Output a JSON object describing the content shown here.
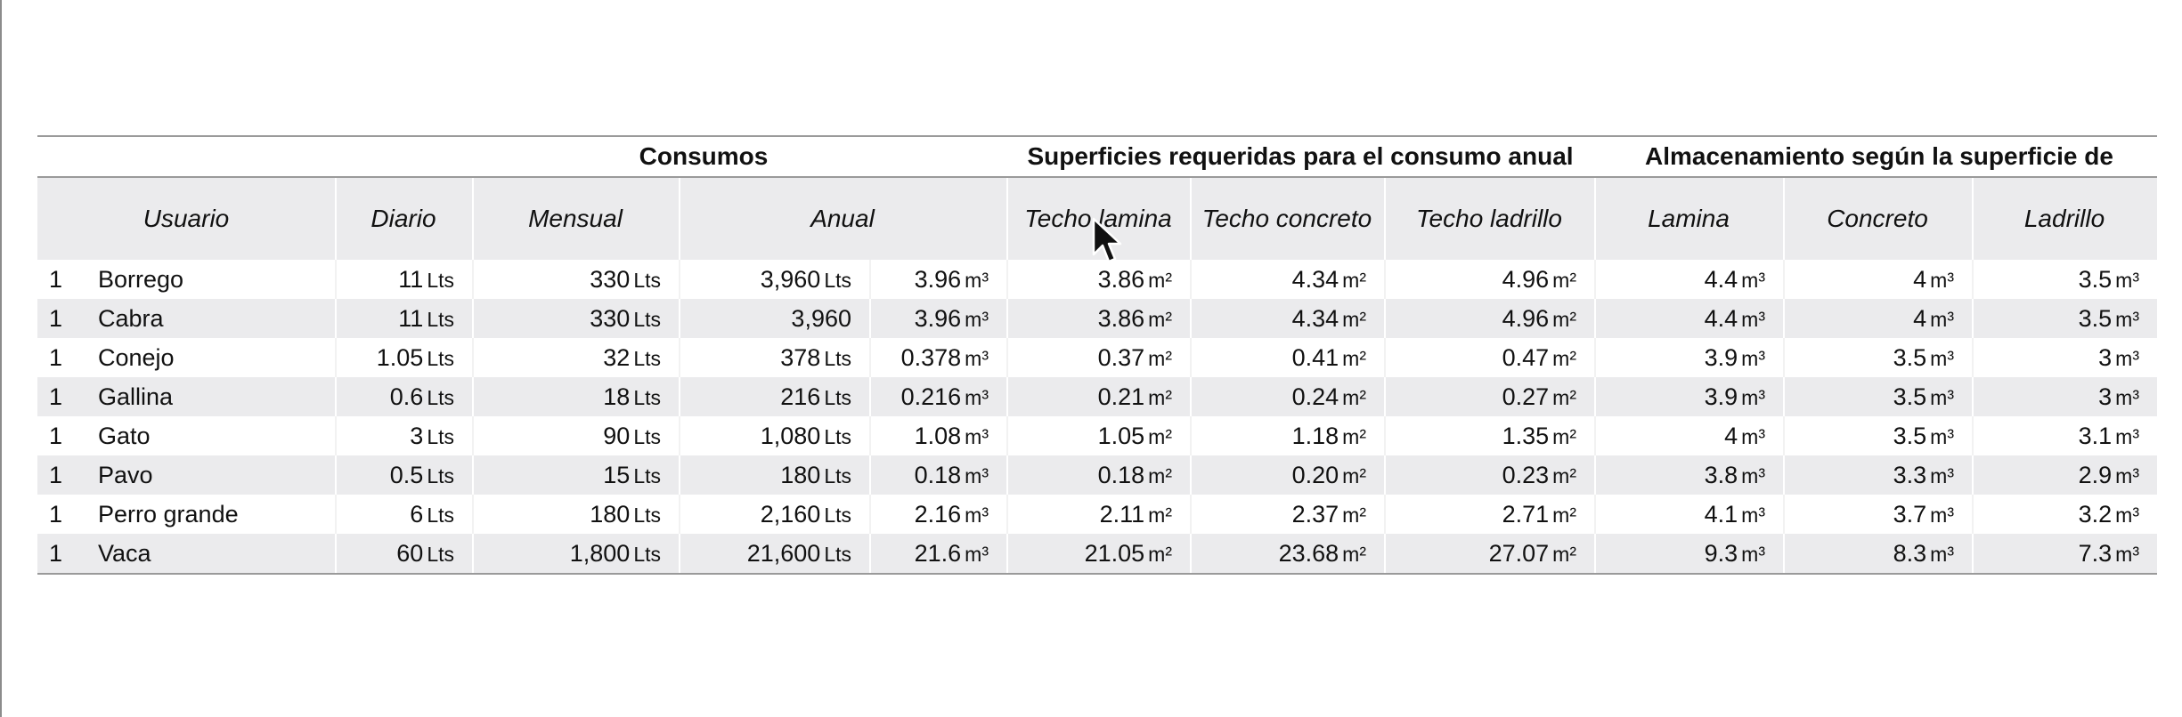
{
  "groups": {
    "consumos": "Consumos",
    "superficies": "Superficies requeridas para el consumo anual",
    "almacenamiento": "Almacenamiento según la superficie de captación"
  },
  "headers": {
    "usuario": "Usuario",
    "diario": "Diario",
    "mensual": "Mensual",
    "anual": "Anual",
    "techo_lamina": "Techo lamina",
    "techo_concreto": "Techo concreto",
    "techo_ladrillo": "Techo ladrillo",
    "lamina": "Lamina",
    "concreto": "Concreto",
    "ladrillo": "Ladrillo"
  },
  "rows": [
    {
      "qty": "1",
      "name": "Borrego",
      "diario": "11",
      "diario_u": "Lts",
      "mensual": "330",
      "mensual_u": "Lts",
      "anual": "3,960",
      "anual_u": "Lts",
      "anual_m3": "3.96",
      "anual_m3_u": "m³",
      "t_lamina": "3.86",
      "t_lamina_u": "m²",
      "t_concreto": "4.34",
      "t_concreto_u": "m²",
      "t_ladrillo": "4.96",
      "t_ladrillo_u": "m²",
      "a_lamina": "4.4",
      "a_lamina_u": "m³",
      "a_concreto": "4",
      "a_concreto_u": "m³",
      "a_ladrillo": "3.5",
      "a_ladrillo_u": "m³"
    },
    {
      "qty": "1",
      "name": "Cabra",
      "diario": "11",
      "diario_u": "Lts",
      "mensual": "330",
      "mensual_u": "Lts",
      "anual": "3,960",
      "anual_u": "",
      "anual_m3": "3.96",
      "anual_m3_u": "m³",
      "t_lamina": "3.86",
      "t_lamina_u": "m²",
      "t_concreto": "4.34",
      "t_concreto_u": "m²",
      "t_ladrillo": "4.96",
      "t_ladrillo_u": "m²",
      "a_lamina": "4.4",
      "a_lamina_u": "m³",
      "a_concreto": "4",
      "a_concreto_u": "m³",
      "a_ladrillo": "3.5",
      "a_ladrillo_u": "m³"
    },
    {
      "qty": "1",
      "name": "Conejo",
      "diario": "1.05",
      "diario_u": "Lts",
      "mensual": "32",
      "mensual_u": "Lts",
      "anual": "378",
      "anual_u": "Lts",
      "anual_m3": "0.378",
      "anual_m3_u": "m³",
      "t_lamina": "0.37",
      "t_lamina_u": "m²",
      "t_concreto": "0.41",
      "t_concreto_u": "m²",
      "t_ladrillo": "0.47",
      "t_ladrillo_u": "m²",
      "a_lamina": "3.9",
      "a_lamina_u": "m³",
      "a_concreto": "3.5",
      "a_concreto_u": "m³",
      "a_ladrillo": "3",
      "a_ladrillo_u": "m³"
    },
    {
      "qty": "1",
      "name": "Gallina",
      "diario": "0.6",
      "diario_u": "Lts",
      "mensual": "18",
      "mensual_u": "Lts",
      "anual": "216",
      "anual_u": "Lts",
      "anual_m3": "0.216",
      "anual_m3_u": "m³",
      "t_lamina": "0.21",
      "t_lamina_u": "m²",
      "t_concreto": "0.24",
      "t_concreto_u": "m²",
      "t_ladrillo": "0.27",
      "t_ladrillo_u": "m²",
      "a_lamina": "3.9",
      "a_lamina_u": "m³",
      "a_concreto": "3.5",
      "a_concreto_u": "m³",
      "a_ladrillo": "3",
      "a_ladrillo_u": "m³"
    },
    {
      "qty": "1",
      "name": "Gato",
      "diario": "3",
      "diario_u": "Lts",
      "mensual": "90",
      "mensual_u": "Lts",
      "anual": "1,080",
      "anual_u": "Lts",
      "anual_m3": "1.08",
      "anual_m3_u": "m³",
      "t_lamina": "1.05",
      "t_lamina_u": "m²",
      "t_concreto": "1.18",
      "t_concreto_u": "m²",
      "t_ladrillo": "1.35",
      "t_ladrillo_u": "m²",
      "a_lamina": "4",
      "a_lamina_u": "m³",
      "a_concreto": "3.5",
      "a_concreto_u": "m³",
      "a_ladrillo": "3.1",
      "a_ladrillo_u": "m³"
    },
    {
      "qty": "1",
      "name": "Pavo",
      "diario": "0.5",
      "diario_u": "Lts",
      "mensual": "15",
      "mensual_u": "Lts",
      "anual": "180",
      "anual_u": "Lts",
      "anual_m3": "0.18",
      "anual_m3_u": "m³",
      "t_lamina": "0.18",
      "t_lamina_u": "m²",
      "t_concreto": "0.20",
      "t_concreto_u": "m²",
      "t_ladrillo": "0.23",
      "t_ladrillo_u": "m²",
      "a_lamina": "3.8",
      "a_lamina_u": "m³",
      "a_concreto": "3.3",
      "a_concreto_u": "m³",
      "a_ladrillo": "2.9",
      "a_ladrillo_u": "m³"
    },
    {
      "qty": "1",
      "name": "Perro grande",
      "diario": "6",
      "diario_u": "Lts",
      "mensual": "180",
      "mensual_u": "Lts",
      "anual": "2,160",
      "anual_u": "Lts",
      "anual_m3": "2.16",
      "anual_m3_u": "m³",
      "t_lamina": "2.11",
      "t_lamina_u": "m²",
      "t_concreto": "2.37",
      "t_concreto_u": "m²",
      "t_ladrillo": "2.71",
      "t_ladrillo_u": "m²",
      "a_lamina": "4.1",
      "a_lamina_u": "m³",
      "a_concreto": "3.7",
      "a_concreto_u": "m³",
      "a_ladrillo": "3.2",
      "a_ladrillo_u": "m³"
    },
    {
      "qty": "1",
      "name": "Vaca",
      "diario": "60",
      "diario_u": "Lts",
      "mensual": "1,800",
      "mensual_u": "Lts",
      "anual": "21,600",
      "anual_u": "Lts",
      "anual_m3": "21.6",
      "anual_m3_u": "m³",
      "t_lamina": "21.05",
      "t_lamina_u": "m²",
      "t_concreto": "23.68",
      "t_concreto_u": "m²",
      "t_ladrillo": "27.07",
      "t_ladrillo_u": "m²",
      "a_lamina": "9.3",
      "a_lamina_u": "m³",
      "a_concreto": "8.3",
      "a_concreto_u": "m³",
      "a_ladrillo": "7.3",
      "a_ladrillo_u": "m³"
    }
  ],
  "icons": {
    "cursor": "mouse-pointer-icon"
  }
}
